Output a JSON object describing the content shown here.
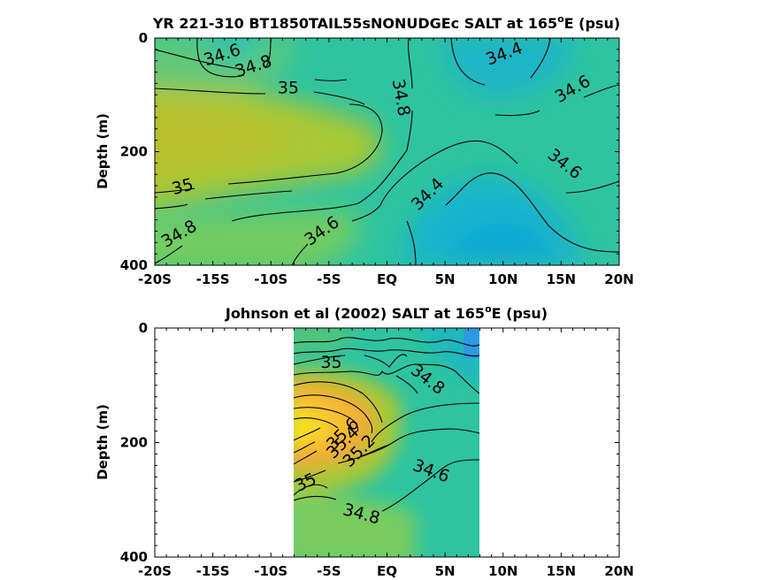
{
  "chart_data": [
    {
      "type": "contour",
      "title_main": "YR 221-310 BT1850TAIL55sNONUDGEc SALT at 165",
      "title_sup": "o",
      "title_end": "E (psu)",
      "ylabel": "Depth (m)",
      "x_ticks": [
        "-20S",
        "-15S",
        "-10S",
        "-5S",
        "EQ",
        "5N",
        "10N",
        "15N",
        "20N"
      ],
      "x_values": [
        -20,
        -15,
        -10,
        -5,
        0,
        5,
        10,
        15,
        20
      ],
      "xlim": [
        -20,
        20
      ],
      "y_ticks": [
        "0",
        "200",
        "400"
      ],
      "y_values": [
        0,
        200,
        400
      ],
      "ylim": [
        0,
        400
      ],
      "y_reversed": true,
      "contour_labels": [
        {
          "text": "34.6",
          "x": -14.2,
          "y": 30,
          "rot": -18
        },
        {
          "text": "34.8",
          "x": -11.5,
          "y": 50,
          "rot": -18
        },
        {
          "text": "35",
          "x": -8.5,
          "y": 88,
          "rot": 0
        },
        {
          "text": "34.8",
          "x": 1.2,
          "y": 105,
          "rot": 80
        },
        {
          "text": "34.4",
          "x": 10.1,
          "y": 28,
          "rot": -20
        },
        {
          "text": "34.6",
          "x": 16,
          "y": 90,
          "rot": -30
        },
        {
          "text": "34.6",
          "x": 15.3,
          "y": 222,
          "rot": 38
        },
        {
          "text": "34.4",
          "x": 3.5,
          "y": 275,
          "rot": -45
        },
        {
          "text": "35",
          "x": -17.6,
          "y": 262,
          "rot": -15
        },
        {
          "text": "34.8",
          "x": -17.9,
          "y": 345,
          "rot": -30
        },
        {
          "text": "34.6",
          "x": -5.6,
          "y": 340,
          "rot": -35
        }
      ]
    },
    {
      "type": "contour",
      "title_main": "Johnson et al (2002) SALT at 165",
      "title_sup": "o",
      "title_end": "E (psu)",
      "ylabel": "Depth (m)",
      "x_ticks": [
        "-20S",
        "-15S",
        "-10S",
        "-5S",
        "EQ",
        "5N",
        "10N",
        "15N",
        "20N"
      ],
      "x_values": [
        -20,
        -15,
        -10,
        -5,
        0,
        5,
        10,
        15,
        20
      ],
      "xlim": [
        -20,
        20
      ],
      "y_ticks": [
        "0",
        "200",
        "400"
      ],
      "y_values": [
        0,
        200,
        400
      ],
      "ylim": [
        0,
        400
      ],
      "y_reversed": true,
      "data_xlim": [
        -8,
        8
      ],
      "contour_labels": [
        {
          "text": "35",
          "x": -4.8,
          "y": 60,
          "rot": 0
        },
        {
          "text": "34.8",
          "x": 3.5,
          "y": 90,
          "rot": 38
        },
        {
          "text": "35.6",
          "x": -3.8,
          "y": 185,
          "rot": -45
        },
        {
          "text": "35.4",
          "x": -3.8,
          "y": 200,
          "rot": -45
        },
        {
          "text": "35.2",
          "x": -2.4,
          "y": 215,
          "rot": -45
        },
        {
          "text": "34.6",
          "x": 3.8,
          "y": 250,
          "rot": 20
        },
        {
          "text": "35",
          "x": -7.0,
          "y": 270,
          "rot": -25
        },
        {
          "text": "34.8",
          "x": -2.2,
          "y": 325,
          "rot": 15
        }
      ]
    }
  ]
}
